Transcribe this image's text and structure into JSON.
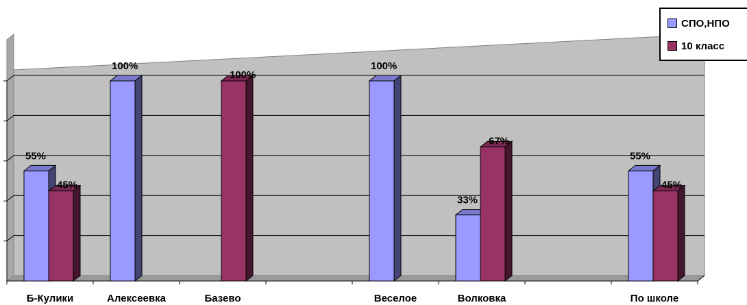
{
  "chart_data": {
    "type": "bar",
    "categories": [
      "Б-Кулики",
      "Алексеевка",
      "Базево",
      "",
      "Веселое",
      "Волковка",
      "",
      "По школе"
    ],
    "series": [
      {
        "name": "СПО,НПО",
        "color": "#9999FF",
        "values": [
          55,
          100,
          null,
          null,
          100,
          33,
          null,
          55
        ],
        "labels": [
          "55%",
          "100%",
          "",
          "",
          "100%",
          "33%",
          "",
          "55%"
        ]
      },
      {
        "name": "10 класс",
        "color": "#993366",
        "values": [
          45,
          null,
          100,
          null,
          null,
          67,
          null,
          45
        ],
        "labels": [
          "45%",
          "",
          "100%",
          "",
          "",
          "67%",
          "",
          "45%"
        ]
      }
    ],
    "ylim": [
      0,
      100
    ],
    "grid": true,
    "legend": "top-right",
    "plot_color": "#C0C0C0"
  }
}
